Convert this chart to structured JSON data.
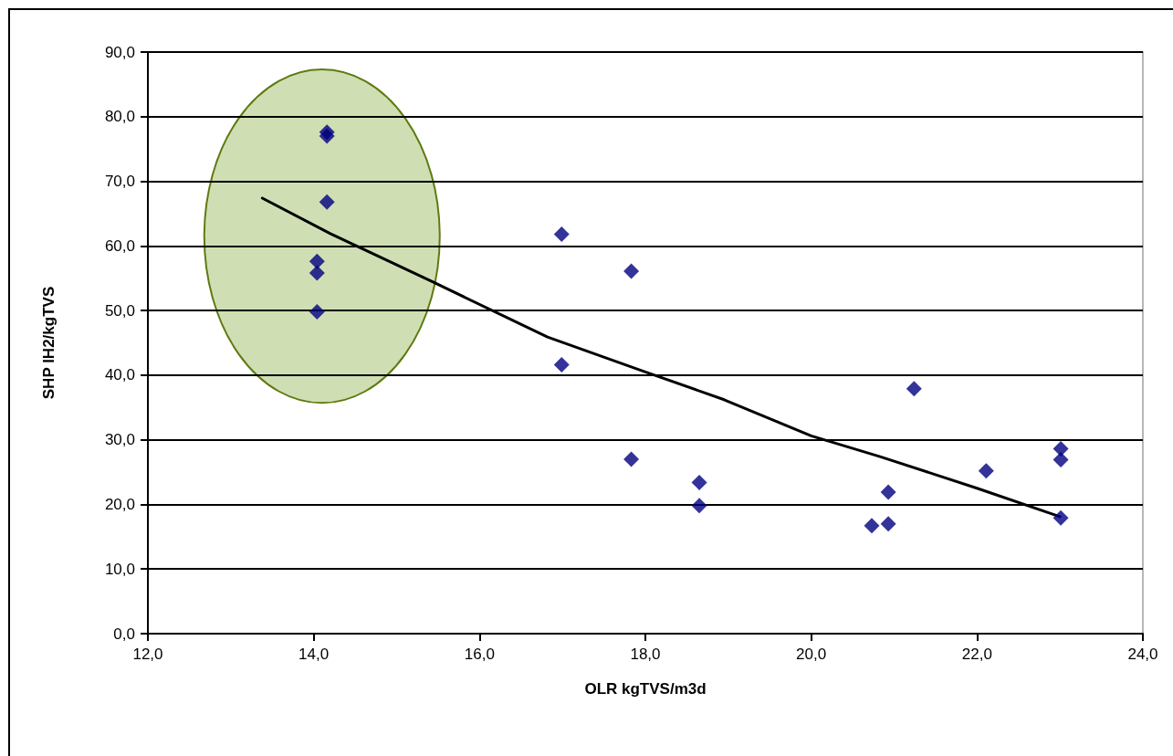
{
  "chart_data": {
    "type": "scatter",
    "xlabel": "OLR kgTVS/m3d",
    "ylabel": "SHP lH2/kgTVS",
    "xlim": [
      12,
      24
    ],
    "xticks": [
      {
        "value": 12,
        "label": "12,0"
      },
      {
        "value": 14,
        "label": "14,0"
      },
      {
        "value": 16,
        "label": "16,0"
      },
      {
        "value": 18,
        "label": "18,0"
      },
      {
        "value": 20,
        "label": "20,0"
      },
      {
        "value": 22,
        "label": "22,0"
      },
      {
        "value": 24,
        "label": "24,0"
      }
    ],
    "ylim": [
      0,
      90
    ],
    "yticks": [
      {
        "value": 0,
        "label": "0,0"
      },
      {
        "value": 10,
        "label": "10,0"
      },
      {
        "value": 20,
        "label": "20,0"
      },
      {
        "value": 30,
        "label": "30,0"
      },
      {
        "value": 40,
        "label": "40,0"
      },
      {
        "value": 50,
        "label": "50,0"
      },
      {
        "value": 60,
        "label": "60,0"
      },
      {
        "value": 70,
        "label": "70,0"
      },
      {
        "value": 80,
        "label": "80,0"
      },
      {
        "value": 90,
        "label": "90,0"
      }
    ],
    "grid": "y",
    "marker": "diamond",
    "series": [
      {
        "type": "scatter",
        "color": "#000080",
        "x": [
          14.16,
          14.16,
          14.16,
          14.04,
          14.04,
          14.04,
          16.99,
          17.83,
          16.99,
          17.83,
          18.65,
          18.65,
          20.73,
          20.93,
          20.93,
          21.24,
          22.11,
          23.01,
          23.01,
          23.01
        ],
        "values": [
          77.6,
          77.0,
          66.8,
          57.6,
          55.8,
          49.8,
          61.8,
          56.1,
          41.6,
          27.0,
          23.4,
          19.8,
          16.7,
          17.0,
          21.9,
          37.9,
          25.2,
          28.6,
          26.9,
          17.9
        ]
      },
      {
        "type": "line",
        "color": "#000000",
        "marker": "none",
        "line_style": "solid",
        "x": [
          13.38,
          14.2,
          15.44,
          16.82,
          18,
          18.95,
          20,
          20.83,
          22,
          23.0
        ],
        "values": [
          67.4,
          61.9,
          54.4,
          45.9,
          40.5,
          36.2,
          30.6,
          27.4,
          22.5,
          18.1
        ]
      }
    ]
  }
}
